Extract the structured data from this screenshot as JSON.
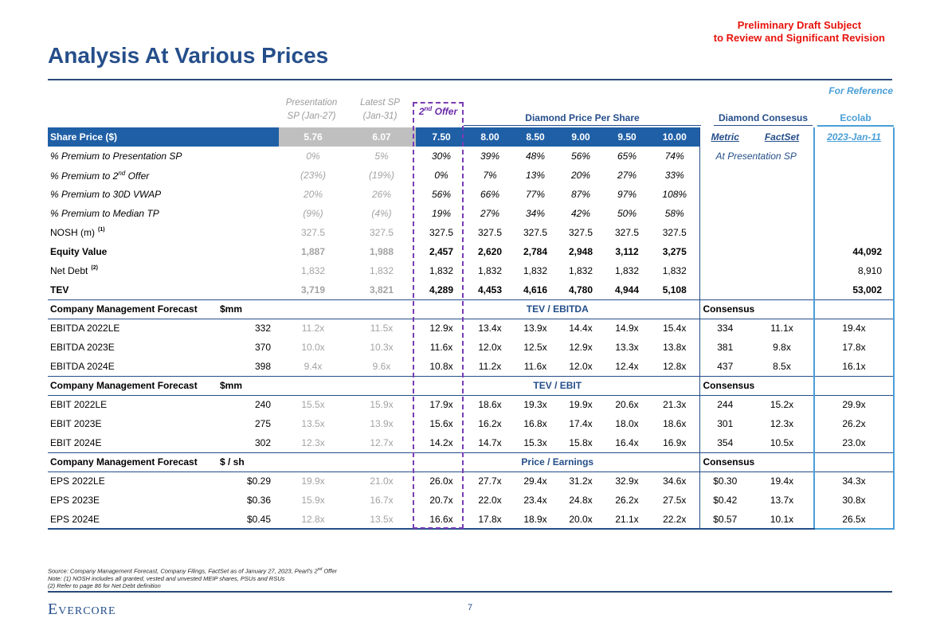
{
  "draft_notice": [
    "Preliminary Draft Subject",
    "to Review and Significant Revision"
  ],
  "title": "Analysis At Various Prices",
  "for_reference": "For Reference",
  "col_headers": {
    "presentation": [
      "Presentation",
      "SP (Jan-27)"
    ],
    "latest": [
      "Latest SP",
      "(Jan-31)"
    ],
    "offer_prefix": "2",
    "offer_sup": "nd",
    "offer_suffix": " Offer",
    "diamond_price": "Diamond Price Per Share",
    "diamond_consensus": "Diamond Consesus",
    "ecolab": "Ecolab"
  },
  "share_price_row": {
    "label": "Share Price ($)",
    "values": [
      "5.76",
      "6.07",
      "7.50",
      "8.00",
      "8.50",
      "9.00",
      "9.50",
      "10.00"
    ],
    "metric": "Metric",
    "factset": "FactSet",
    "ecolab_date": "2023-Jan-11"
  },
  "top_rows": [
    {
      "label": "% Premium to Presentation SP",
      "values": [
        "0%",
        "5%",
        "30%",
        "39%",
        "48%",
        "56%",
        "65%",
        "74%"
      ],
      "consensus_note": "At Presentation SP",
      "ecolab": ""
    },
    {
      "label": "% Premium to 2",
      "label_sup": "nd",
      "label_suffix": " Offer",
      "values": [
        "(23%)",
        "(19%)",
        "0%",
        "7%",
        "13%",
        "20%",
        "27%",
        "33%"
      ],
      "ecolab": ""
    },
    {
      "label": "% Premium to 30D VWAP",
      "values": [
        "20%",
        "26%",
        "56%",
        "66%",
        "77%",
        "87%",
        "97%",
        "108%"
      ],
      "ecolab": ""
    },
    {
      "label": "% Premium to Median TP",
      "values": [
        "(9%)",
        "(4%)",
        "19%",
        "27%",
        "34%",
        "42%",
        "50%",
        "58%"
      ],
      "ecolab": ""
    },
    {
      "label": "NOSH (m)",
      "note": "(1)",
      "values": [
        "327.5",
        "327.5",
        "327.5",
        "327.5",
        "327.5",
        "327.5",
        "327.5",
        "327.5"
      ],
      "ecolab": ""
    },
    {
      "label": "Equity Value",
      "values": [
        "1,887",
        "1,988",
        "2,457",
        "2,620",
        "2,784",
        "2,948",
        "3,112",
        "3,275"
      ],
      "ecolab": "44,092"
    },
    {
      "label": "Net Debt",
      "note": "(2)",
      "values": [
        "1,832",
        "1,832",
        "1,832",
        "1,832",
        "1,832",
        "1,832",
        "1,832",
        "1,832"
      ],
      "ecolab": "8,910"
    },
    {
      "label": "TEV",
      "values": [
        "3,719",
        "3,821",
        "4,289",
        "4,453",
        "4,616",
        "4,780",
        "4,944",
        "5,108"
      ],
      "ecolab": "53,002"
    }
  ],
  "sections": [
    {
      "label": "Company Management Forecast",
      "unit": "$mm",
      "center": "TEV / EBITDA",
      "consensus": "Consensus",
      "rows": [
        {
          "label": "EBITDA 2022LE",
          "base": "332",
          "values": [
            "11.2x",
            "11.5x",
            "12.9x",
            "13.4x",
            "13.9x",
            "14.4x",
            "14.9x",
            "15.4x"
          ],
          "metric": "334",
          "factset": "11.1x",
          "ecolab": "19.4x"
        },
        {
          "label": "EBITDA 2023E",
          "base": "370",
          "values": [
            "10.0x",
            "10.3x",
            "11.6x",
            "12.0x",
            "12.5x",
            "12.9x",
            "13.3x",
            "13.8x"
          ],
          "metric": "381",
          "factset": "9.8x",
          "ecolab": "17.8x"
        },
        {
          "label": "EBITDA 2024E",
          "base": "398",
          "values": [
            "9.4x",
            "9.6x",
            "10.8x",
            "11.2x",
            "11.6x",
            "12.0x",
            "12.4x",
            "12.8x"
          ],
          "metric": "437",
          "factset": "8.5x",
          "ecolab": "16.1x"
        }
      ]
    },
    {
      "label": "Company Management Forecast",
      "unit": "$mm",
      "center": "TEV / EBIT",
      "consensus": "Consensus",
      "rows": [
        {
          "label": "EBIT 2022LE",
          "base": "240",
          "values": [
            "15.5x",
            "15.9x",
            "17.9x",
            "18.6x",
            "19.3x",
            "19.9x",
            "20.6x",
            "21.3x"
          ],
          "metric": "244",
          "factset": "15.2x",
          "ecolab": "29.9x"
        },
        {
          "label": "EBIT 2023E",
          "base": "275",
          "values": [
            "13.5x",
            "13.9x",
            "15.6x",
            "16.2x",
            "16.8x",
            "17.4x",
            "18.0x",
            "18.6x"
          ],
          "metric": "301",
          "factset": "12.3x",
          "ecolab": "26.2x"
        },
        {
          "label": "EBIT 2024E",
          "base": "302",
          "values": [
            "12.3x",
            "12.7x",
            "14.2x",
            "14.7x",
            "15.3x",
            "15.8x",
            "16.4x",
            "16.9x"
          ],
          "metric": "354",
          "factset": "10.5x",
          "ecolab": "23.0x"
        }
      ]
    },
    {
      "label": "Company Management Forecast",
      "unit": "$ / sh",
      "center": "Price / Earnings",
      "consensus": "Consensus",
      "rows": [
        {
          "label": "EPS 2022LE",
          "base": "$0.29",
          "values": [
            "19.9x",
            "21.0x",
            "26.0x",
            "27.7x",
            "29.4x",
            "31.2x",
            "32.9x",
            "34.6x"
          ],
          "metric": "$0.30",
          "factset": "19.4x",
          "ecolab": "34.3x"
        },
        {
          "label": "EPS 2023E",
          "base": "$0.36",
          "values": [
            "15.9x",
            "16.7x",
            "20.7x",
            "22.0x",
            "23.4x",
            "24.8x",
            "26.2x",
            "27.5x"
          ],
          "metric": "$0.42",
          "factset": "13.7x",
          "ecolab": "30.8x"
        },
        {
          "label": "EPS 2024E",
          "base": "$0.45",
          "values": [
            "12.8x",
            "13.5x",
            "16.6x",
            "17.8x",
            "18.9x",
            "20.0x",
            "21.1x",
            "22.2x"
          ],
          "metric": "$0.57",
          "factset": "10.1x",
          "ecolab": "26.5x"
        }
      ]
    }
  ],
  "footnotes": {
    "source_prefix": "Source: Company Management Forecast, Company Filings, FactSet as of January 27, 2023, Pearl's 2",
    "source_sup": "nd",
    "source_suffix": " Offer",
    "note1": "Note: (1) NOSH includes all granted, vested and unvested MEIP shares, PSUs and RSUs",
    "note2": "(2) Refer to page 86 for Net Debt definition"
  },
  "logo": "Evercore",
  "page_number": "7",
  "colors": {
    "title": "#254e8a",
    "header_fill": "#1f5fa6",
    "draft_red": "#e8130c",
    "offer_purple": "#7a3db4",
    "ecolab_blue": "#4a9fd8"
  }
}
